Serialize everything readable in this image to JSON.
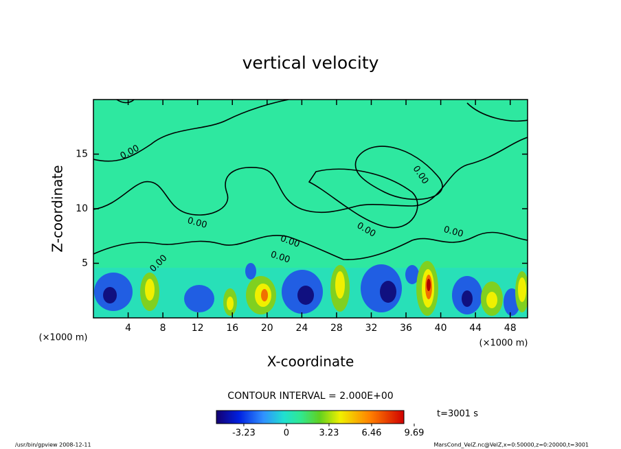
{
  "chart_data": {
    "type": "contour",
    "title": "vertical velocity",
    "x_label": "X-coordinate",
    "y_label": "Z-coordinate",
    "x_unit": "(×1000 m)",
    "y_unit": "(×1000 m)",
    "xlim": [
      0,
      50
    ],
    "xticks": [
      4,
      8,
      12,
      16,
      20,
      24,
      28,
      32,
      36,
      40,
      44,
      48
    ],
    "ylim": [
      0,
      20
    ],
    "yticks": [
      5,
      10,
      15
    ],
    "contour_labels": [
      "0.00",
      "0.00",
      "0.00",
      "0.00",
      "0.00",
      "0.00",
      "0.00",
      "0.00"
    ],
    "contour_interval": "CONTOUR INTERVAL = 2.000E+00",
    "colorbar": {
      "lim": [
        -5.31,
        8.91
      ],
      "ticks": [
        -3.23,
        {
          "value": 0,
          "label": "0"
        },
        3.23,
        6.46,
        9.69
      ]
    },
    "time_label": "t=3001 s",
    "footer_left": "/usr/bin/gpview   2008-12-11",
    "footer_right": "MarsCond_VelZ.nc@VelZ,x=0:50000,z=0:20000,t=3001"
  }
}
